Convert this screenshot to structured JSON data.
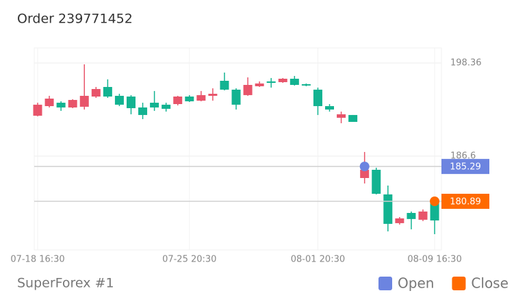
{
  "chart_data": {
    "type": "candlestick",
    "title": "Order 239771452",
    "source": "SuperForex #1",
    "categories": [
      "07-18 16:30",
      null,
      null,
      null,
      null,
      null,
      null,
      null,
      null,
      null,
      null,
      null,
      null,
      "07-25 20:30",
      null,
      null,
      null,
      null,
      null,
      null,
      null,
      null,
      null,
      null,
      "08-01 20:30",
      null,
      null,
      null,
      null,
      null,
      null,
      null,
      null,
      null,
      "08-09 16:30"
    ],
    "open": [
      191.7,
      192.91,
      193.34,
      192.74,
      192.83,
      194.12,
      195.33,
      194.21,
      194.12,
      192.74,
      193.34,
      193.09,
      193.17,
      194.12,
      193.6,
      194.21,
      196.11,
      194.99,
      194.3,
      195.42,
      196.03,
      195.94,
      196.37,
      195.68,
      194.99,
      192.91,
      191.44,
      191.79,
      183.83,
      184.87,
      181.76,
      178.13,
      179.42,
      178.56,
      180.81
    ],
    "high": [
      193.34,
      194.21,
      193.52,
      193.78,
      198.19,
      195.33,
      196.29,
      194.47,
      194.3,
      193.34,
      194.82,
      193.34,
      194.21,
      194.3,
      194.82,
      195.16,
      197.15,
      195.16,
      196.54,
      196.03,
      196.46,
      196.46,
      196.72,
      195.77,
      195.25,
      193.17,
      192.22,
      191.79,
      187.12,
      185.13,
      182.88,
      178.9,
      179.6,
      179.86,
      181.41
    ],
    "low": [
      191.62,
      192.74,
      192.31,
      192.65,
      192.48,
      193.95,
      193.95,
      192.91,
      191.88,
      191.27,
      192.31,
      192.22,
      193.0,
      193.43,
      193.52,
      193.6,
      194.9,
      192.48,
      194.21,
      195.33,
      195.25,
      195.85,
      195.51,
      195.42,
      191.79,
      192.22,
      190.75,
      190.92,
      183.14,
      181.76,
      177.09,
      177.95,
      177.35,
      178.39,
      176.74
    ],
    "close": [
      193.09,
      193.86,
      192.74,
      193.69,
      194.21,
      195.07,
      194.12,
      193.09,
      192.65,
      191.79,
      192.74,
      192.57,
      194.12,
      193.52,
      194.3,
      194.47,
      194.99,
      193.09,
      195.59,
      195.77,
      195.85,
      196.37,
      195.59,
      195.51,
      192.91,
      192.48,
      191.88,
      190.92,
      184.87,
      181.84,
      178.04,
      178.73,
      178.65,
      179.6,
      178.47
    ],
    "up_color": "#e8546a",
    "down_color": "#12b391",
    "ylim": [
      174.75,
      200.26
    ],
    "yticks": [
      198.36,
      186.6
    ],
    "grid": true,
    "markers": [
      {
        "name": "Open",
        "value": 185.29,
        "color": "#6c84e0"
      },
      {
        "name": "Close",
        "value": 180.89,
        "color": "#ff6a00"
      }
    ]
  }
}
